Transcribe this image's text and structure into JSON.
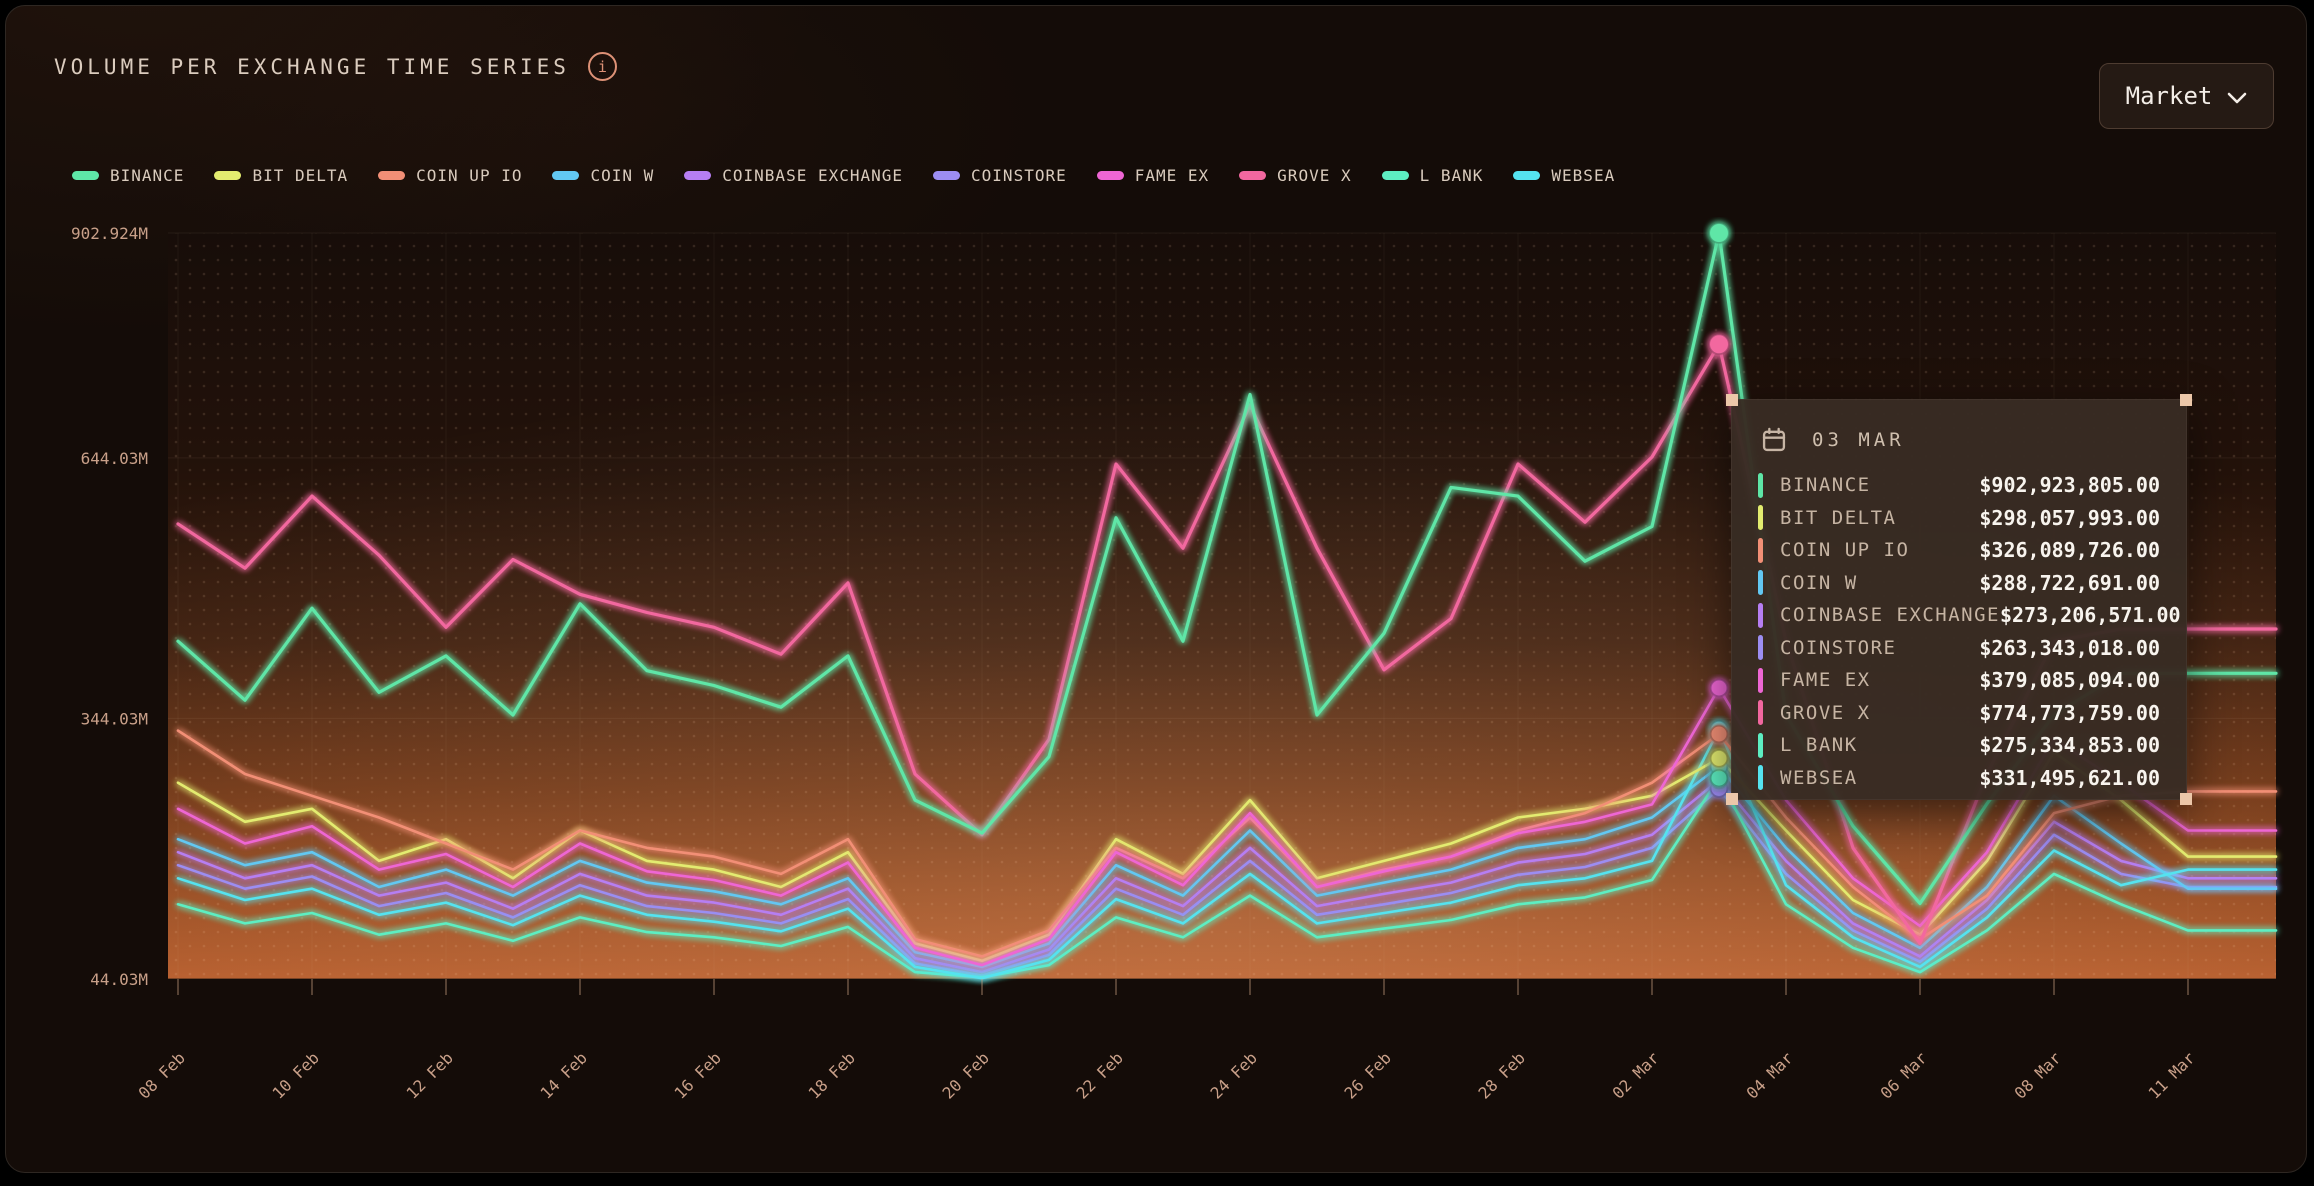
{
  "header": {
    "title": "VOLUME PER EXCHANGE TIME SERIES"
  },
  "icons": {
    "info_glyph": "i"
  },
  "market_button": {
    "label": "Market"
  },
  "tooltip": {
    "date": "03 MAR",
    "rows": [
      {
        "name": "BINANCE",
        "value": "$902,923,805.00"
      },
      {
        "name": "BIT DELTA",
        "value": "$298,057,993.00"
      },
      {
        "name": "COIN UP IO",
        "value": "$326,089,726.00"
      },
      {
        "name": "COIN W",
        "value": "$288,722,691.00"
      },
      {
        "name": "COINBASE EXCHANGE",
        "value": "$273,206,571.00"
      },
      {
        "name": "COINSTORE",
        "value": "$263,343,018.00"
      },
      {
        "name": "FAME EX",
        "value": "$379,085,094.00"
      },
      {
        "name": "GROVE X",
        "value": "$774,773,759.00"
      },
      {
        "name": "L BANK",
        "value": "$275,334,853.00"
      },
      {
        "name": "WEBSEA",
        "value": "$331,495,621.00"
      }
    ]
  },
  "chart_data": {
    "type": "line",
    "title": "VOLUME PER EXCHANGE TIME SERIES",
    "unit": "USD millions",
    "ylim": [
      44.03,
      902.924
    ],
    "y_tick_labels": [
      "902.924M",
      "644.03M",
      "344.03M",
      "44.03M"
    ],
    "y_tick_values": [
      902.924,
      644.03,
      344.03,
      44.03
    ],
    "x_tick_labels": [
      "08 Feb",
      "10 Feb",
      "12 Feb",
      "14 Feb",
      "16 Feb",
      "18 Feb",
      "20 Feb",
      "22 Feb",
      "24 Feb",
      "26 Feb",
      "28 Feb",
      "02 Mar",
      "04 Mar",
      "06 Mar",
      "08 Mar",
      "11 Mar"
    ],
    "points_per_series": 31,
    "selected_index": 23,
    "selected_date": "03 MAR",
    "grid": "dotted",
    "legend_position": "top",
    "series": [
      {
        "name": "BINANCE",
        "color": "#5ee6a7",
        "values": [
          433,
          365,
          471,
          374,
          416,
          348,
          476,
          399,
          382,
          357,
          416,
          250,
          212,
          300,
          575,
          433,
          717,
          348,
          442,
          610,
          600,
          525,
          565,
          902.92,
          348,
          220,
          131,
          246,
          348,
          396,
          396
        ]
      },
      {
        "name": "BIT DELTA",
        "color": "#e3ec6f",
        "values": [
          270,
          225,
          240,
          180,
          205,
          160,
          215,
          180,
          170,
          150,
          190,
          85,
          65,
          95,
          205,
          165,
          250,
          160,
          180,
          200,
          230,
          240,
          255,
          298.06,
          215,
          135,
          95,
          180,
          305,
          250,
          185
        ]
      },
      {
        "name": "COIN UP IO",
        "color": "#f28f76",
        "values": [
          330,
          280,
          255,
          230,
          200,
          170,
          215,
          195,
          185,
          165,
          205,
          90,
          70,
          100,
          195,
          160,
          230,
          150,
          170,
          185,
          215,
          235,
          270,
          326.09,
          230,
          150,
          90,
          140,
          235,
          255,
          260
        ]
      },
      {
        "name": "COIN W",
        "color": "#62c8f2",
        "values": [
          205,
          175,
          190,
          150,
          170,
          140,
          180,
          155,
          145,
          130,
          160,
          75,
          58,
          85,
          175,
          140,
          215,
          140,
          155,
          170,
          195,
          205,
          230,
          288.72,
          195,
          120,
          80,
          150,
          255,
          200,
          148
        ]
      },
      {
        "name": "COINBASE EXCHANGE",
        "color": "#b67ef2",
        "values": [
          190,
          160,
          175,
          140,
          155,
          125,
          165,
          140,
          132,
          118,
          148,
          68,
          52,
          78,
          160,
          128,
          195,
          128,
          142,
          155,
          178,
          188,
          210,
          273.21,
          180,
          108,
          70,
          135,
          225,
          180,
          160
        ]
      },
      {
        "name": "COINSTORE",
        "color": "#9c8df2",
        "values": [
          175,
          148,
          162,
          128,
          143,
          115,
          152,
          128,
          120,
          108,
          136,
          62,
          48,
          72,
          148,
          118,
          180,
          118,
          130,
          143,
          164,
          173,
          195,
          263.34,
          165,
          100,
          64,
          125,
          210,
          165,
          150
        ]
      },
      {
        "name": "FAME EX",
        "color": "#ee66d4",
        "values": [
          240,
          200,
          220,
          170,
          188,
          150,
          200,
          168,
          158,
          140,
          178,
          80,
          60,
          90,
          190,
          152,
          235,
          150,
          168,
          185,
          212,
          225,
          245,
          379.09,
          250,
          160,
          105,
          190,
          320,
          270,
          215
        ]
      },
      {
        "name": "GROVE X",
        "color": "#f2679f",
        "values": [
          568,
          517,
          600,
          532,
          449,
          527,
          487,
          466,
          449,
          418,
          500,
          280,
          210,
          320,
          637,
          540,
          705,
          540,
          400,
          459,
          637,
          570,
          645,
          774.77,
          433,
          195,
          85,
          280,
          433,
          447,
          447
        ]
      },
      {
        "name": "L BANK",
        "color": "#5deec2",
        "values": [
          130,
          108,
          120,
          95,
          108,
          88,
          115,
          98,
          92,
          82,
          104,
          52,
          46,
          60,
          115,
          92,
          140,
          92,
          102,
          112,
          130,
          138,
          158,
          275.33,
          130,
          80,
          52,
          100,
          165,
          130,
          100
        ]
      },
      {
        "name": "WEBSEA",
        "color": "#55e3ef",
        "values": [
          160,
          135,
          148,
          118,
          132,
          106,
          140,
          118,
          110,
          99,
          125,
          58,
          45,
          66,
          136,
          108,
          165,
          108,
          120,
          132,
          152,
          160,
          180,
          331.5,
          152,
          92,
          58,
          115,
          192,
          152,
          170
        ]
      }
    ]
  }
}
